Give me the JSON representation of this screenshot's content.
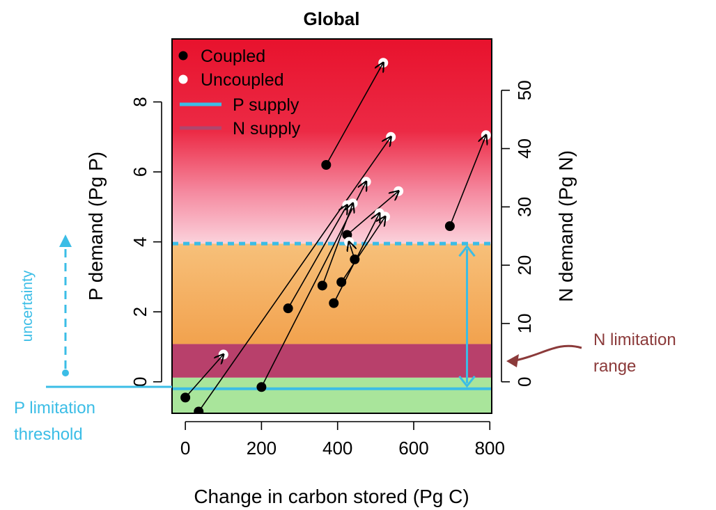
{
  "chart_data": {
    "type": "scatter",
    "title": "Global",
    "xlabel": "Change in carbon stored (Pg C)",
    "ylabel": "P demand (Pg P)",
    "y2label": "N demand (Pg N)",
    "xlim": [
      -35,
      805
    ],
    "ylim": [
      -0.9,
      9.8
    ],
    "y2_per_y": 6.0,
    "x_ticks": [
      0,
      200,
      400,
      600,
      800
    ],
    "x_tick_labels": [
      "0",
      "200",
      "400",
      "600",
      "800"
    ],
    "y_ticks": [
      0,
      2,
      4,
      6,
      8
    ],
    "y_tick_labels": [
      "0",
      "2",
      "4",
      "6",
      "8"
    ],
    "y2_ticks": [
      0,
      10,
      20,
      30,
      40,
      50
    ],
    "y2_tick_labels": [
      "0",
      "10",
      "20",
      "30",
      "40",
      "50"
    ],
    "legend": {
      "placement": "top-left",
      "entries": [
        {
          "label": "Coupled",
          "marker": "filled-circle",
          "color": "#000000"
        },
        {
          "label": "Uncoupled",
          "marker": "open-circle",
          "color": "#ffffff"
        },
        {
          "label": "P supply",
          "marker": "line",
          "color": "#3bbde6"
        },
        {
          "label": "N supply",
          "marker": "line",
          "color": "#b0466d"
        }
      ]
    },
    "pairs": [
      {
        "coupled": [
          0,
          -0.45
        ],
        "uncoupled": [
          100,
          0.78
        ]
      },
      {
        "coupled": [
          35,
          -0.85
        ],
        "uncoupled": [
          540,
          7.0
        ]
      },
      {
        "coupled": [
          200,
          -0.15
        ],
        "uncoupled": [
          475,
          5.72
        ]
      },
      {
        "coupled": [
          370,
          6.2
        ],
        "uncoupled": [
          520,
          9.12
        ]
      },
      {
        "coupled": [
          270,
          2.1
        ],
        "uncoupled": [
          425,
          5.05
        ]
      },
      {
        "coupled": [
          360,
          2.75
        ],
        "uncoupled": [
          440,
          5.1
        ]
      },
      {
        "coupled": [
          390,
          2.25
        ],
        "uncoupled": [
          510,
          4.82
        ]
      },
      {
        "coupled": [
          410,
          2.85
        ],
        "uncoupled": [
          525,
          4.72
        ]
      },
      {
        "coupled": [
          425,
          4.2
        ],
        "uncoupled": [
          560,
          5.45
        ]
      },
      {
        "coupled": [
          445,
          3.5
        ],
        "uncoupled": [
          430,
          4.0
        ]
      },
      {
        "coupled": [
          695,
          4.45
        ],
        "uncoupled": [
          790,
          7.05
        ]
      }
    ],
    "p_supply": -0.2,
    "p_supply_upper": 3.95,
    "n_supply_range": [
      0.12,
      1.08
    ],
    "background_bands": [
      {
        "from": -0.9,
        "to": 0.12,
        "color": "#a9e59b"
      },
      {
        "from": 0.12,
        "to": 1.08,
        "color": "#b8406b"
      },
      {
        "from": 1.08,
        "to": 3.95,
        "color": "#f2ad5b"
      },
      {
        "from": 3.95,
        "to": 9.8,
        "color": "#e8122d"
      }
    ],
    "annotations": {
      "uncertainty": "uncertainty",
      "p_limitation_line1": "P limitation",
      "p_limitation_line2": "threshold",
      "n_limitation_line1": "N limitation",
      "n_limitation_line2": "range"
    },
    "colors": {
      "p_supply": "#3bbde6",
      "n_supply": "#b0466d",
      "annotation_cyan": "#3bbde6",
      "annotation_brown": "#8b3a3a"
    }
  }
}
